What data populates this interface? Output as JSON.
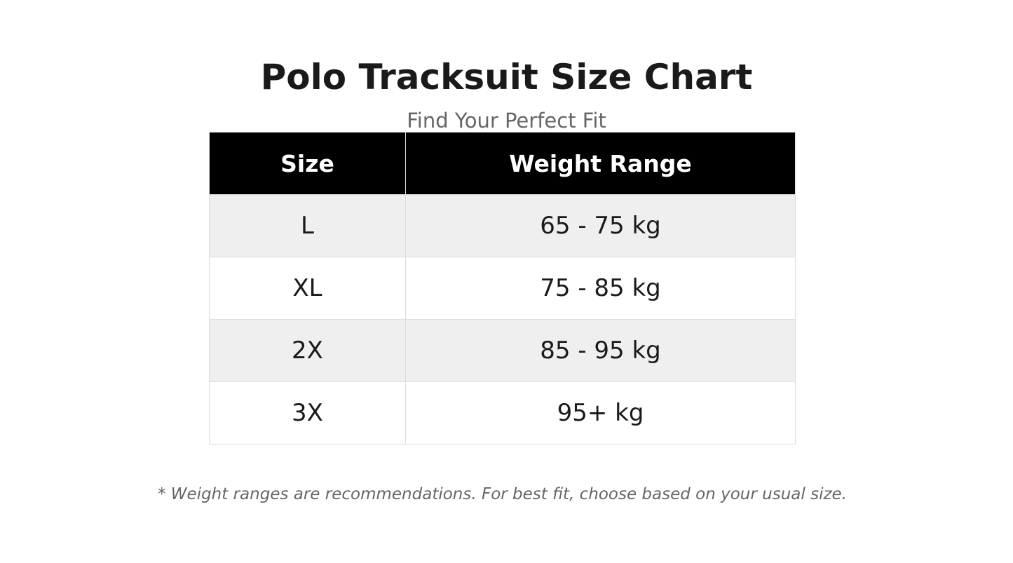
{
  "header": {
    "title": "Polo Tracksuit Size Chart",
    "subtitle": "Find Your Perfect Fit"
  },
  "table": {
    "columns": [
      "Size",
      "Weight Range"
    ],
    "rows": [
      [
        "L",
        "65 - 75 kg"
      ],
      [
        "XL",
        "75 - 85 kg"
      ],
      [
        "2X",
        "85 - 95 kg"
      ],
      [
        "3X",
        "95+ kg"
      ]
    ]
  },
  "footnote": "* Weight ranges are recommendations. For best fit, choose based on your usual size."
}
